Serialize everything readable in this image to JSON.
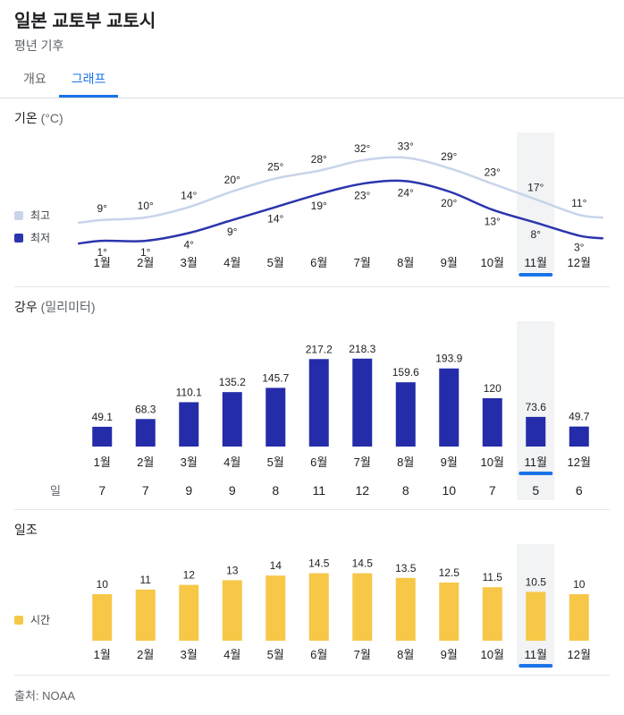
{
  "header": {
    "title": "일본 교토부 교토시",
    "subtitle": "평년 기후",
    "menu_icon": "kebab-menu-icon"
  },
  "tabs": [
    {
      "label": "개요",
      "active": false
    },
    {
      "label": "그래프",
      "active": true
    }
  ],
  "highlight_index": 10,
  "highlighted_month": "11월",
  "colors": {
    "accent": "#1a73e8",
    "high_line": "#c8d4ea",
    "low_line": "#2b35ad",
    "rain_bar": "#242ca9",
    "sun_bar": "#f7c748",
    "highlight_band": "#f1f3f4",
    "label_text": "#202124",
    "muted_text": "#5f6368",
    "divider": "#e4e6ea"
  },
  "chart_data": [
    {
      "type": "line",
      "title": "기온 (°C)",
      "label": "기온",
      "unit": "(°C)",
      "categories": [
        "1월",
        "2월",
        "3월",
        "4월",
        "5월",
        "6월",
        "7월",
        "8월",
        "9월",
        "10월",
        "11월",
        "12월"
      ],
      "series": [
        {
          "name": "최고",
          "values": [
            9,
            10,
            14,
            20,
            25,
            28,
            32,
            33,
            29,
            23,
            17,
            11
          ]
        },
        {
          "name": "최저",
          "values": [
            1,
            1,
            4,
            9,
            14,
            19,
            23,
            24,
            20,
            13,
            8,
            3
          ]
        }
      ],
      "value_suffix": "°",
      "legend_position": "left",
      "highlighted_category": "11월"
    },
    {
      "type": "bar",
      "title": "강우 (밀리미터)",
      "label": "강우",
      "unit": "(밀리미터)",
      "categories": [
        "1월",
        "2월",
        "3월",
        "4월",
        "5월",
        "6월",
        "7월",
        "8월",
        "9월",
        "10월",
        "11월",
        "12월"
      ],
      "values": [
        49.1,
        68.3,
        110.1,
        135.2,
        145.7,
        217.2,
        218.3,
        159.6,
        193.9,
        120,
        73.6,
        49.7
      ],
      "days_row": {
        "label": "일",
        "values": [
          7,
          7,
          9,
          9,
          8,
          11,
          12,
          8,
          10,
          7,
          5,
          6
        ]
      },
      "highlighted_category": "11월"
    },
    {
      "type": "bar",
      "title": "일조",
      "label": "일조",
      "unit": "",
      "legend": "시간",
      "categories": [
        "1월",
        "2월",
        "3월",
        "4월",
        "5월",
        "6월",
        "7월",
        "8월",
        "9월",
        "10월",
        "11월",
        "12월"
      ],
      "values": [
        10,
        11,
        12,
        13,
        14,
        14.5,
        14.5,
        13.5,
        12.5,
        11.5,
        10.5,
        10
      ],
      "highlighted_category": "11월"
    }
  ],
  "footer": {
    "source": "출처: NOAA"
  }
}
